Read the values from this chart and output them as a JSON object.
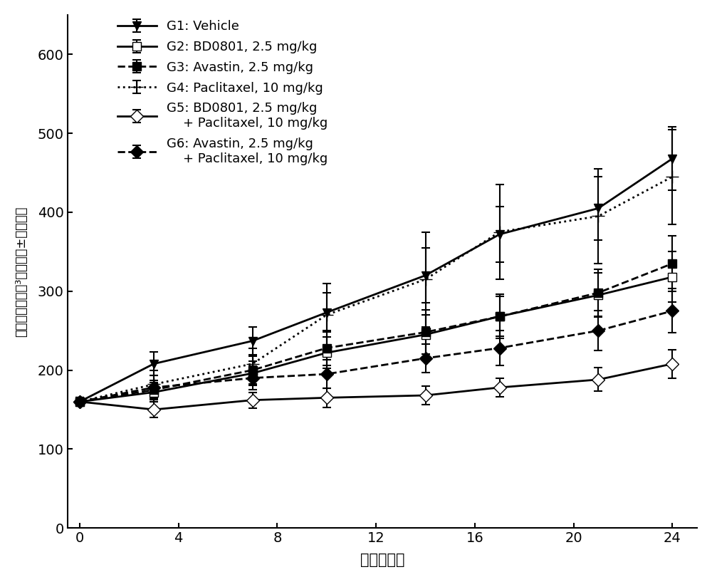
{
  "x": [
    0,
    3,
    7,
    10,
    14,
    17,
    21,
    24
  ],
  "groups": {
    "G1": {
      "label": "G1: Vehicle",
      "y": [
        160,
        208,
        237,
        273,
        320,
        372,
        405,
        468
      ],
      "yerr": [
        5,
        15,
        18,
        25,
        35,
        35,
        40,
        40
      ],
      "linestyle": "-",
      "marker": "v",
      "markerfacecolor": "black",
      "color": "black",
      "markersize": 9,
      "linewidth": 2.0
    },
    "G2": {
      "label": "G2: BD0801, 2.5 mg/kg",
      "y": [
        160,
        172,
        196,
        222,
        245,
        268,
        295,
        318
      ],
      "yerr": [
        5,
        12,
        15,
        20,
        25,
        25,
        28,
        32
      ],
      "linestyle": "-",
      "marker": "s",
      "markerfacecolor": "white",
      "color": "black",
      "markersize": 9,
      "linewidth": 2.0
    },
    "G3": {
      "label": "G3: Avastin, 2.5 mg/kg",
      "y": [
        160,
        175,
        200,
        228,
        248,
        268,
        298,
        335
      ],
      "yerr": [
        5,
        12,
        18,
        22,
        28,
        28,
        30,
        35
      ],
      "linestyle": "--",
      "marker": "s",
      "markerfacecolor": "black",
      "color": "black",
      "markersize": 9,
      "linewidth": 2.0
    },
    "G4": {
      "label": "G4: Paclitaxel, 10 mg/kg",
      "y": [
        160,
        182,
        208,
        270,
        315,
        375,
        395,
        445
      ],
      "yerr": [
        5,
        18,
        20,
        40,
        60,
        60,
        60,
        60
      ],
      "linestyle": ":",
      "marker": "+",
      "markerfacecolor": "black",
      "color": "black",
      "markersize": 13,
      "linewidth": 2.0
    },
    "G5": {
      "label": "G5: BD0801, 2.5 mg/kg\n    + Paclitaxel, 10 mg/kg",
      "y": [
        160,
        150,
        162,
        165,
        168,
        178,
        188,
        208
      ],
      "yerr": [
        5,
        10,
        10,
        12,
        12,
        12,
        15,
        18
      ],
      "linestyle": "-",
      "marker": "D",
      "markerfacecolor": "white",
      "color": "black",
      "markersize": 9,
      "linewidth": 2.0
    },
    "G6": {
      "label": "G6: Avastin, 2.5 mg/kg\n    + Paclitaxel, 10 mg/kg",
      "y": [
        160,
        178,
        190,
        195,
        215,
        228,
        250,
        275
      ],
      "yerr": [
        5,
        15,
        15,
        18,
        18,
        22,
        25,
        28
      ],
      "linestyle": "--",
      "marker": "D",
      "markerfacecolor": "black",
      "color": "black",
      "markersize": 9,
      "linewidth": 2.0
    }
  },
  "xlabel": "治疗后天数",
  "ylabel": "肿瘦体积（毫米³）平均値±标准误差",
  "xlim": [
    -0.5,
    25
  ],
  "ylim": [
    0,
    650
  ],
  "xticks": [
    0,
    4,
    8,
    12,
    16,
    20,
    24
  ],
  "yticks": [
    0,
    100,
    200,
    300,
    400,
    500,
    600
  ],
  "figsize": [
    10.0,
    8.17
  ],
  "dpi": 100
}
